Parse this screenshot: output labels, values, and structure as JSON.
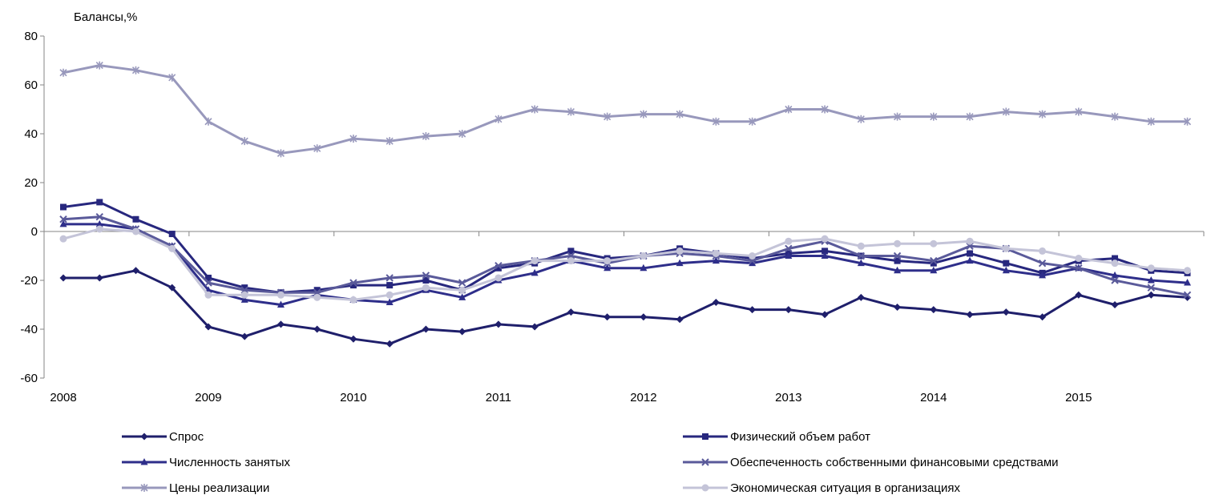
{
  "chart_data": {
    "type": "line",
    "ylabel": "Балансы,%",
    "ylim": [
      -60,
      80
    ],
    "yticks": [
      80,
      60,
      40,
      20,
      0,
      -20,
      -40,
      -60
    ],
    "xlim": [
      2008,
      2015.83
    ],
    "xticks": [
      2008,
      2009,
      2010,
      2011,
      2012,
      2013,
      2014,
      2015
    ],
    "x_unit": "year, quarterly points",
    "grid": false,
    "legend": "bottom, two columns",
    "series": [
      {
        "name": "Спрос",
        "color": "#1f1f6b",
        "marker": "diamond",
        "values": [
          -19,
          -19,
          -16,
          -23,
          -39,
          -43,
          -38,
          -40,
          -44,
          -46,
          -40,
          -41,
          -38,
          -39,
          -33,
          -35,
          -35,
          -36,
          -29,
          -32,
          -32,
          -34,
          -27,
          -31,
          -32,
          -34,
          -33,
          -35,
          -26,
          -30,
          -26,
          -27
        ]
      },
      {
        "name": "Физический объем работ",
        "color": "#27277e",
        "marker": "square",
        "values": [
          10,
          12,
          5,
          -1,
          -19,
          -23,
          -25,
          -24,
          -22,
          -22,
          -20,
          -24,
          -15,
          -13,
          -8,
          -11,
          -10,
          -7,
          -9,
          -11,
          -9,
          -8,
          -10,
          -12,
          -13,
          -9,
          -13,
          -17,
          -12,
          -11,
          -16,
          -17
        ]
      },
      {
        "name": "Численность занятых",
        "color": "#2e2e8a",
        "marker": "triangle",
        "values": [
          3,
          3,
          1,
          -6,
          -24,
          -28,
          -30,
          -26,
          -28,
          -29,
          -24,
          -27,
          -20,
          -17,
          -12,
          -15,
          -15,
          -13,
          -12,
          -13,
          -10,
          -10,
          -13,
          -16,
          -16,
          -12,
          -16,
          -18,
          -15,
          -18,
          -20,
          -21
        ]
      },
      {
        "name": "Обеспеченность собственными финансовыми средствами",
        "color": "#5a5a9a",
        "marker": "x",
        "values": [
          5,
          6,
          1,
          -6,
          -21,
          -24,
          -25,
          -25,
          -21,
          -19,
          -18,
          -21,
          -14,
          -12,
          -10,
          -13,
          -10,
          -9,
          -10,
          -12,
          -7,
          -4,
          -10,
          -10,
          -12,
          -6,
          -7,
          -13,
          -15,
          -20,
          -23,
          -26
        ]
      },
      {
        "name": "Цены реализации",
        "color": "#9898bc",
        "marker": "star",
        "values": [
          65,
          68,
          66,
          63,
          45,
          37,
          32,
          34,
          38,
          37,
          39,
          40,
          46,
          50,
          49,
          47,
          48,
          48,
          45,
          45,
          50,
          50,
          46,
          47,
          47,
          47,
          49,
          48,
          49,
          47,
          45,
          45
        ]
      },
      {
        "name": "Экономическая ситуация в организациях",
        "color": "#c4c4d8",
        "marker": "circle",
        "values": [
          -3,
          1,
          0,
          -7,
          -26,
          -26,
          -26,
          -27,
          -28,
          -26,
          -23,
          -24,
          -19,
          -12,
          -12,
          -12,
          -10,
          -8,
          -9,
          -10,
          -4,
          -3,
          -6,
          -5,
          -5,
          -4,
          -7,
          -8,
          -11,
          -13,
          -15,
          -16
        ]
      }
    ]
  }
}
